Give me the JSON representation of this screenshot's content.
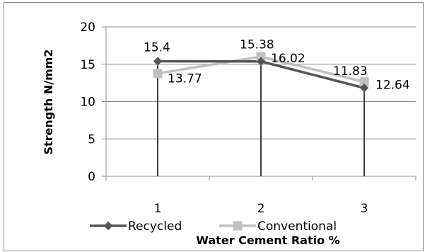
{
  "chart_data": {
    "type": "line",
    "categories": [
      "1",
      "2",
      "3"
    ],
    "series": [
      {
        "name": "Recycled",
        "values": [
          15.4,
          15.38,
          11.83
        ],
        "color": "#555555",
        "marker": "diamond"
      },
      {
        "name": "Conventional",
        "values": [
          13.77,
          16.02,
          12.64
        ],
        "color": "#c0c0c0",
        "marker": "square"
      }
    ],
    "data_labels": [
      [
        "15.4",
        "15.38",
        "11.83"
      ],
      [
        "13.77",
        "16.02",
        "12.64"
      ]
    ],
    "xlabel": "Water Cement Ratio %",
    "ylabel": "Strength N/mm2",
    "ylim": [
      0,
      20
    ],
    "yticks": [
      "0",
      "5",
      "10",
      "15",
      "20"
    ],
    "grid": true,
    "legend_position": "bottom"
  }
}
